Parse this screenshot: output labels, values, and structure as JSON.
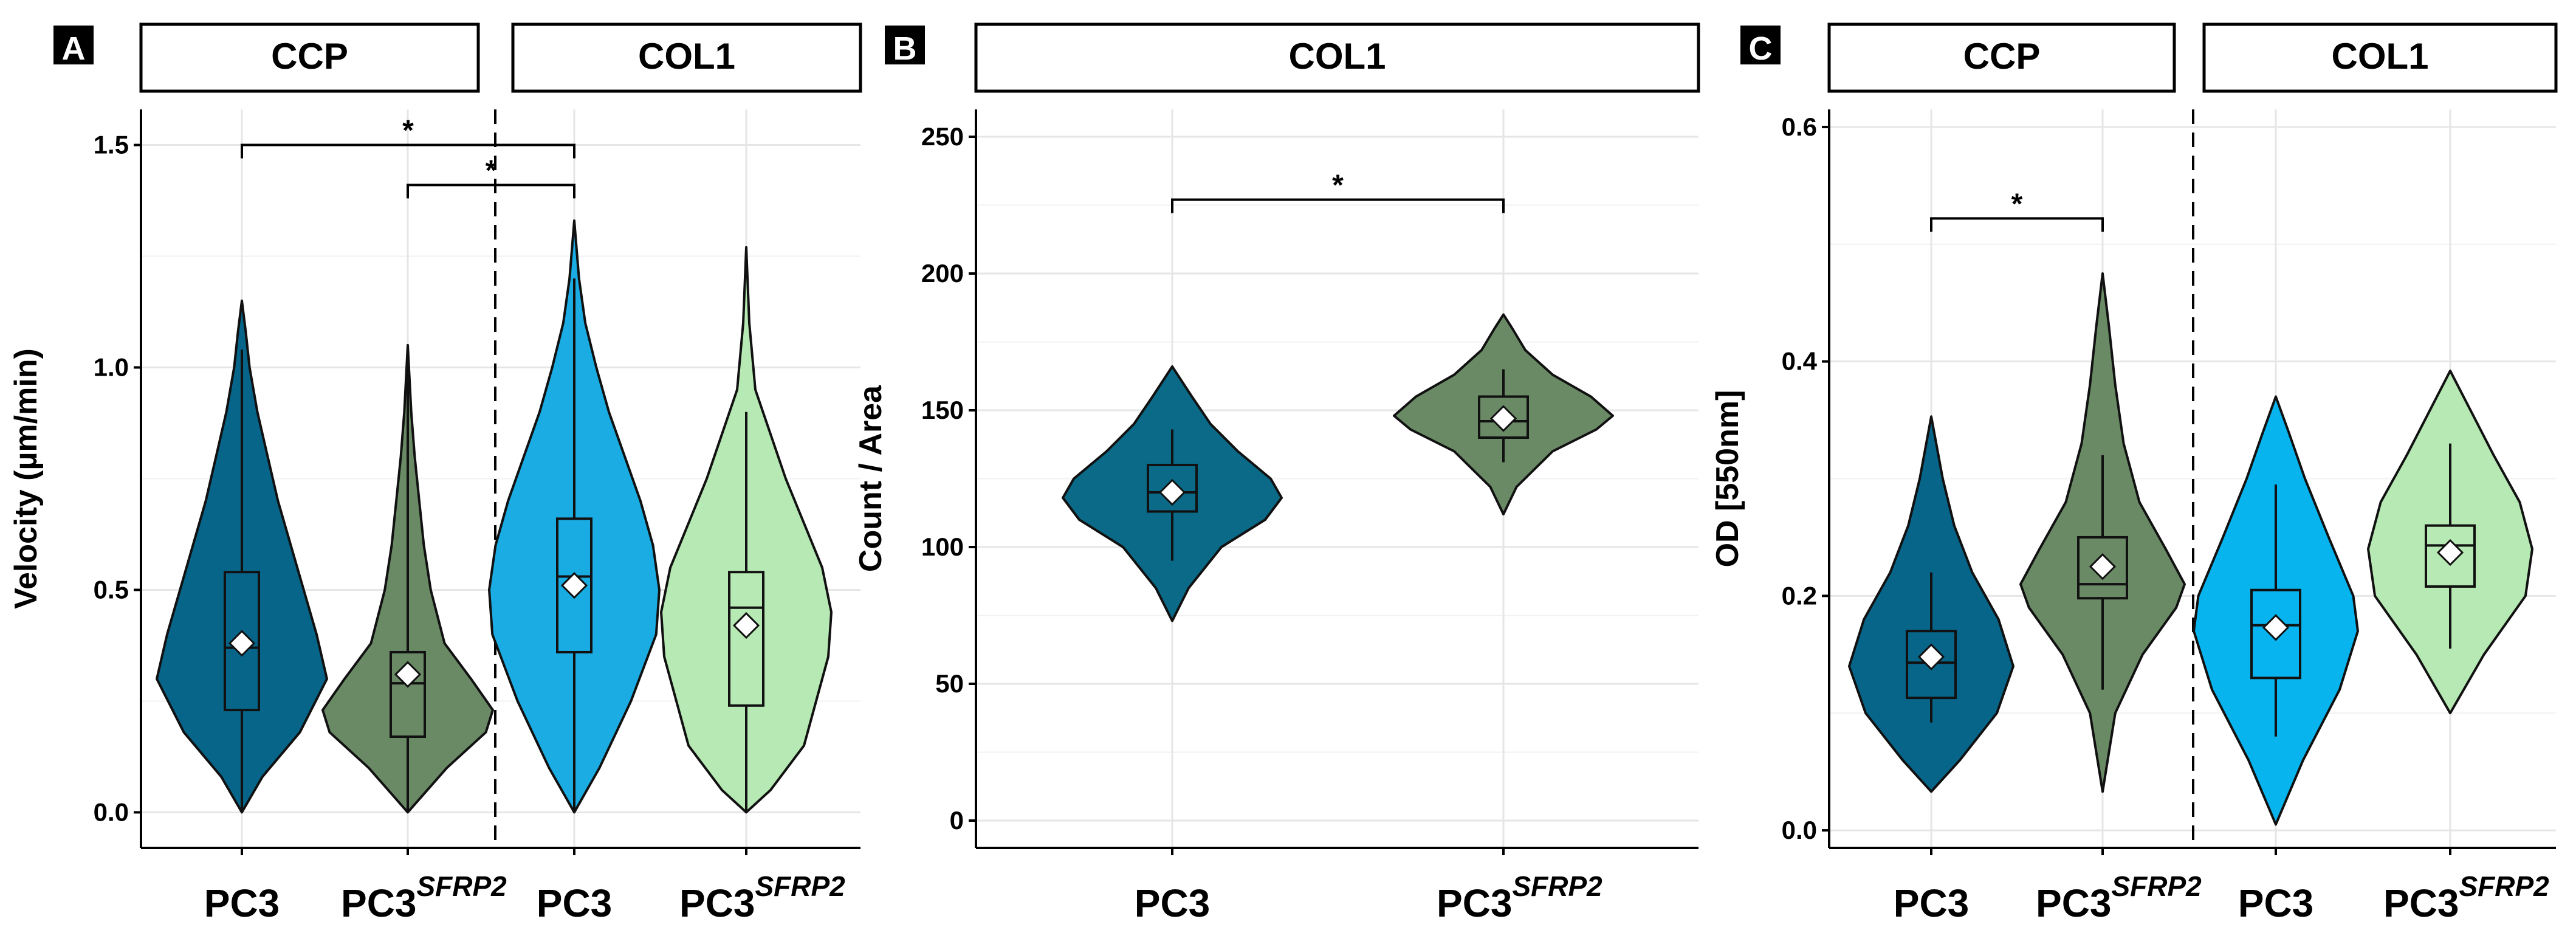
{
  "colors": {
    "pc3_ccp": "#07658A",
    "sfrp2_ccp": "#6A8A66",
    "pc3_col1": "#1AACE2",
    "sfrp2_col1": "#B6E9B3",
    "b_pc3": "#0A6A88",
    "b_sfrp2": "#6A8A66",
    "c_pc3_col1": "#08B4EE"
  },
  "chart_data": [
    {
      "panel": "A",
      "type": "violin",
      "ylabel": "Velocity (µm/min)",
      "ylim": [
        -0.08,
        1.58
      ],
      "yticks": [
        0.0,
        0.5,
        1.0,
        1.5
      ],
      "ytick_labels": [
        "0.0",
        "0.5",
        "1.0",
        "1.5"
      ],
      "facets": [
        "CCP",
        "COL1"
      ],
      "categories": [
        "PC3",
        "PC3",
        "PC3",
        "PC3"
      ],
      "superscripts": [
        "",
        "SFRP2",
        "",
        "SFRP2"
      ],
      "series": [
        {
          "facet": "CCP",
          "group": "PC3",
          "color_key": "pc3_ccp",
          "min": 0.0,
          "q1": 0.23,
          "median": 0.37,
          "q3": 0.54,
          "whisker_top": 1.04,
          "max": 1.15,
          "mean": 0.38,
          "density": [
            [
              0.0,
              0.0
            ],
            [
              0.08,
              0.16
            ],
            [
              0.18,
              0.45
            ],
            [
              0.3,
              0.66
            ],
            [
              0.4,
              0.58
            ],
            [
              0.5,
              0.48
            ],
            [
              0.6,
              0.38
            ],
            [
              0.7,
              0.28
            ],
            [
              0.8,
              0.2
            ],
            [
              0.9,
              0.12
            ],
            [
              1.0,
              0.06
            ],
            [
              1.08,
              0.03
            ],
            [
              1.15,
              0.0
            ]
          ]
        },
        {
          "facet": "CCP",
          "group": "PC3^SFRP2",
          "color_key": "sfrp2_ccp",
          "min": 0.0,
          "q1": 0.17,
          "median": 0.29,
          "q3": 0.36,
          "whisker_top": 1.05,
          "max": 1.05,
          "mean": 0.31,
          "density": [
            [
              0.0,
              0.0
            ],
            [
              0.1,
              0.34
            ],
            [
              0.18,
              0.68
            ],
            [
              0.23,
              0.74
            ],
            [
              0.3,
              0.55
            ],
            [
              0.38,
              0.32
            ],
            [
              0.5,
              0.2
            ],
            [
              0.6,
              0.14
            ],
            [
              0.7,
              0.1
            ],
            [
              0.8,
              0.06
            ],
            [
              0.9,
              0.03
            ],
            [
              1.05,
              0.0
            ]
          ]
        },
        {
          "facet": "COL1",
          "group": "PC3",
          "color_key": "pc3_col1",
          "min": 0.0,
          "q1": 0.36,
          "median": 0.53,
          "q3": 0.66,
          "whisker_top": 1.2,
          "max": 1.33,
          "mean": 0.51,
          "density": [
            [
              0.0,
              0.0
            ],
            [
              0.1,
              0.16
            ],
            [
              0.25,
              0.36
            ],
            [
              0.4,
              0.52
            ],
            [
              0.5,
              0.54
            ],
            [
              0.6,
              0.5
            ],
            [
              0.7,
              0.42
            ],
            [
              0.8,
              0.32
            ],
            [
              0.9,
              0.22
            ],
            [
              1.0,
              0.14
            ],
            [
              1.1,
              0.07
            ],
            [
              1.2,
              0.03
            ],
            [
              1.33,
              0.0
            ]
          ]
        },
        {
          "facet": "COL1",
          "group": "PC3^SFRP2",
          "color_key": "sfrp2_col1",
          "min": 0.0,
          "q1": 0.24,
          "median": 0.46,
          "q3": 0.54,
          "whisker_top": 0.9,
          "max": 1.27,
          "mean": 0.42,
          "density": [
            [
              0.0,
              0.0
            ],
            [
              0.05,
              0.16
            ],
            [
              0.15,
              0.38
            ],
            [
              0.25,
              0.46
            ],
            [
              0.35,
              0.54
            ],
            [
              0.45,
              0.56
            ],
            [
              0.55,
              0.5
            ],
            [
              0.65,
              0.38
            ],
            [
              0.75,
              0.26
            ],
            [
              0.85,
              0.16
            ],
            [
              0.95,
              0.06
            ],
            [
              1.1,
              0.02
            ],
            [
              1.27,
              0.0
            ]
          ]
        }
      ],
      "significance": [
        {
          "from": 0,
          "to": 2,
          "y": 1.5,
          "label": "*"
        },
        {
          "from": 1,
          "to": 2,
          "y": 1.41,
          "label": "*"
        }
      ],
      "facet_divider_after": 1
    },
    {
      "panel": "B",
      "type": "violin",
      "ylabel": "Count / Area",
      "ylim": [
        -10,
        260
      ],
      "yticks": [
        0,
        50,
        100,
        150,
        200,
        250
      ],
      "ytick_labels": [
        "0",
        "50",
        "100",
        "150",
        "200",
        "250"
      ],
      "facets": [
        "COL1"
      ],
      "categories": [
        "PC3",
        "PC3"
      ],
      "superscripts": [
        "",
        "SFRP2"
      ],
      "series": [
        {
          "facet": "COL1",
          "group": "PC3",
          "color_key": "b_pc3",
          "min": 73,
          "q1": 113,
          "median": 120,
          "q3": 130,
          "whisker_bottom": 95,
          "whisker_top": 143,
          "max": 166,
          "mean": 120,
          "density": [
            [
              73,
              0.0
            ],
            [
              85,
              0.15
            ],
            [
              100,
              0.45
            ],
            [
              110,
              0.85
            ],
            [
              118,
              1.0
            ],
            [
              125,
              0.9
            ],
            [
              135,
              0.6
            ],
            [
              145,
              0.35
            ],
            [
              155,
              0.18
            ],
            [
              166,
              0.0
            ]
          ]
        },
        {
          "facet": "COL1",
          "group": "PC3^SFRP2",
          "color_key": "b_sfrp2",
          "min": 112,
          "q1": 140,
          "median": 146,
          "q3": 155,
          "whisker_bottom": 131,
          "whisker_top": 165,
          "max": 185,
          "mean": 147,
          "density": [
            [
              112,
              0.0
            ],
            [
              122,
              0.12
            ],
            [
              135,
              0.45
            ],
            [
              143,
              0.85
            ],
            [
              148,
              1.0
            ],
            [
              155,
              0.8
            ],
            [
              163,
              0.45
            ],
            [
              172,
              0.2
            ],
            [
              180,
              0.08
            ],
            [
              185,
              0.0
            ]
          ]
        }
      ],
      "significance": [
        {
          "from": 0,
          "to": 1,
          "y": 227,
          "label": "*"
        }
      ]
    },
    {
      "panel": "C",
      "type": "violin",
      "ylabel": "OD [550nm]",
      "ylim": [
        -0.015,
        0.615
      ],
      "yticks": [
        0.0,
        0.2,
        0.4,
        0.6
      ],
      "ytick_labels": [
        "0.0",
        "0.2",
        "0.4",
        "0.6"
      ],
      "facets": [
        "CCP",
        "COL1"
      ],
      "categories": [
        "PC3",
        "PC3",
        "PC3",
        "PC3"
      ],
      "superscripts": [
        "",
        "SFRP2",
        "",
        "SFRP2"
      ],
      "series": [
        {
          "facet": "CCP",
          "group": "PC3",
          "color_key": "pc3_ccp",
          "min": 0.033,
          "q1": 0.113,
          "median": 0.143,
          "q3": 0.17,
          "whisker_bottom": 0.092,
          "whisker_top": 0.22,
          "max": 0.353,
          "mean": 0.148,
          "density": [
            [
              0.033,
              0.0
            ],
            [
              0.06,
              0.35
            ],
            [
              0.1,
              0.8
            ],
            [
              0.14,
              1.0
            ],
            [
              0.18,
              0.82
            ],
            [
              0.22,
              0.5
            ],
            [
              0.26,
              0.28
            ],
            [
              0.3,
              0.14
            ],
            [
              0.353,
              0.0
            ]
          ]
        },
        {
          "facet": "CCP",
          "group": "PC3^SFRP2",
          "color_key": "sfrp2_ccp",
          "min": 0.033,
          "q1": 0.198,
          "median": 0.21,
          "q3": 0.25,
          "whisker_bottom": 0.12,
          "whisker_top": 0.32,
          "max": 0.475,
          "mean": 0.225,
          "density": [
            [
              0.033,
              0.0
            ],
            [
              0.1,
              0.12
            ],
            [
              0.15,
              0.38
            ],
            [
              0.19,
              0.7
            ],
            [
              0.21,
              0.78
            ],
            [
              0.24,
              0.6
            ],
            [
              0.28,
              0.35
            ],
            [
              0.33,
              0.2
            ],
            [
              0.38,
              0.12
            ],
            [
              0.43,
              0.06
            ],
            [
              0.475,
              0.0
            ]
          ]
        },
        {
          "facet": "COL1",
          "group": "PC3",
          "color_key": "c_pc3_col1",
          "min": 0.005,
          "q1": 0.13,
          "median": 0.175,
          "q3": 0.205,
          "whisker_bottom": 0.08,
          "whisker_top": 0.295,
          "max": 0.37,
          "mean": 0.173,
          "density": [
            [
              0.005,
              0.0
            ],
            [
              0.06,
              0.3
            ],
            [
              0.12,
              0.7
            ],
            [
              0.17,
              0.9
            ],
            [
              0.2,
              0.85
            ],
            [
              0.25,
              0.58
            ],
            [
              0.3,
              0.32
            ],
            [
              0.34,
              0.14
            ],
            [
              0.37,
              0.0
            ]
          ]
        },
        {
          "facet": "COL1",
          "group": "PC3^SFRP2",
          "color_key": "sfrp2_col1",
          "min": 0.1,
          "q1": 0.208,
          "median": 0.243,
          "q3": 0.26,
          "whisker_bottom": 0.155,
          "whisker_top": 0.33,
          "max": 0.392,
          "mean": 0.237,
          "density": [
            [
              0.1,
              0.0
            ],
            [
              0.15,
              0.35
            ],
            [
              0.2,
              0.78
            ],
            [
              0.24,
              0.85
            ],
            [
              0.28,
              0.72
            ],
            [
              0.32,
              0.45
            ],
            [
              0.36,
              0.2
            ],
            [
              0.392,
              0.0
            ]
          ]
        }
      ],
      "significance": [
        {
          "from": 0,
          "to": 1,
          "y": 0.522,
          "label": "*"
        }
      ],
      "facet_divider_after": 1
    }
  ]
}
